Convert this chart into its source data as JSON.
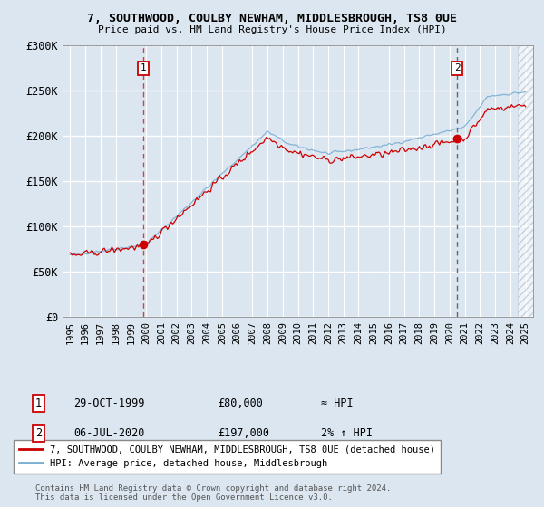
{
  "title_line1": "7, SOUTHWOOD, COULBY NEWHAM, MIDDLESBROUGH, TS8 0UE",
  "title_line2": "Price paid vs. HM Land Registry's House Price Index (HPI)",
  "bg_color": "#dce6f0",
  "plot_bg_color": "#dce6f0",
  "grid_color": "#ffffff",
  "red_line_color": "#cc0000",
  "blue_line_color": "#7bafd4",
  "marker1_date_x": 1999.83,
  "marker1_value": 80000,
  "marker2_date_x": 2020.5,
  "marker2_value": 197000,
  "ylim_min": 0,
  "ylim_max": 300000,
  "xlim_min": 1994.5,
  "xlim_max": 2025.5,
  "yticks": [
    0,
    50000,
    100000,
    150000,
    200000,
    250000,
    300000
  ],
  "ytick_labels": [
    "£0",
    "£50K",
    "£100K",
    "£150K",
    "£200K",
    "£250K",
    "£300K"
  ],
  "xticks": [
    1995,
    1996,
    1997,
    1998,
    1999,
    2000,
    2001,
    2002,
    2003,
    2004,
    2005,
    2006,
    2007,
    2008,
    2009,
    2010,
    2011,
    2012,
    2013,
    2014,
    2015,
    2016,
    2017,
    2018,
    2019,
    2020,
    2021,
    2022,
    2023,
    2024,
    2025
  ],
  "legend_line1": "7, SOUTHWOOD, COULBY NEWHAM, MIDDLESBROUGH, TS8 0UE (detached house)",
  "legend_line2": "HPI: Average price, detached house, Middlesbrough",
  "annotation1_label": "1",
  "annotation1_date": "29-OCT-1999",
  "annotation1_price": "£80,000",
  "annotation1_hpi": "≈ HPI",
  "annotation2_label": "2",
  "annotation2_date": "06-JUL-2020",
  "annotation2_price": "£197,000",
  "annotation2_hpi": "2% ↑ HPI",
  "footer": "Contains HM Land Registry data © Crown copyright and database right 2024.\nThis data is licensed under the Open Government Licence v3.0."
}
